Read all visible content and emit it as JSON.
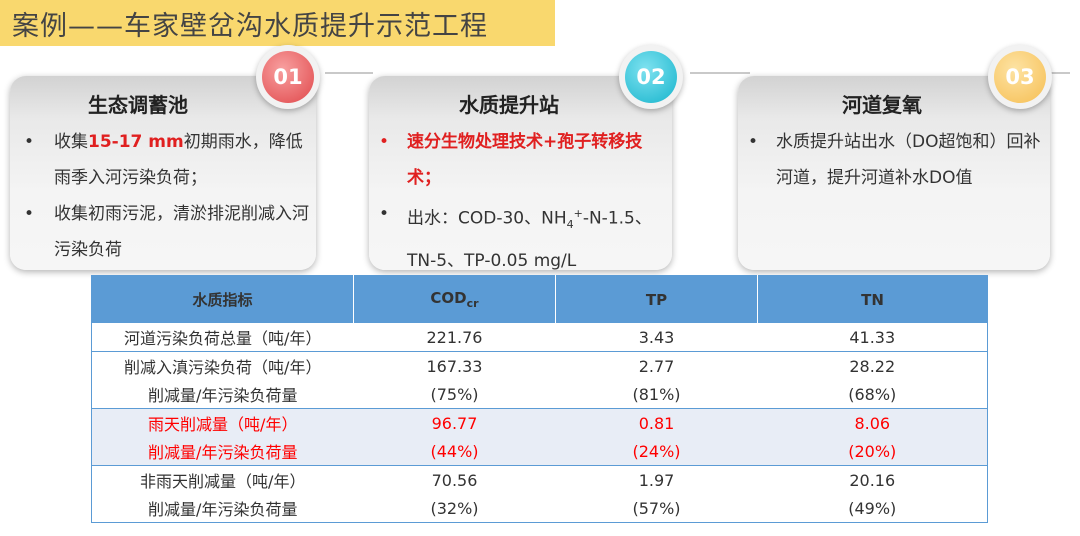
{
  "title": "案例——车家壁岔沟水质提升示范工程",
  "cards": [
    {
      "badge": "01",
      "title": "生态调蓄池",
      "bullets": [
        {
          "pre": "收集",
          "red": "15-17 mm",
          "post": "初期雨水，降低雨季入河污染负荷；"
        },
        {
          "pre": "收集初雨污泥，清淤排泥削减入河污染负荷"
        }
      ]
    },
    {
      "badge": "02",
      "title": "水质提升站",
      "bullets": [
        {
          "red": "速分生物处理技术+孢子转移技术；"
        },
        {
          "pre": "出水：COD-30、NH",
          "sub": "4",
          "sup": "+",
          "post": "-N-1.5、TN-5、TP-0.05 mg/L"
        }
      ]
    },
    {
      "badge": "03",
      "title": "河道复氧",
      "bullets": [
        {
          "pre": "水质提升站出水（DO超饱和）回补河道，提升河道补水DO值"
        }
      ]
    }
  ],
  "table": {
    "headers": {
      "indicator": "水质指标",
      "cod": "COD",
      "cod_sub": "cr",
      "tp": "TP",
      "tn": "TN"
    },
    "rows": [
      [
        "河道污染负荷总量（吨/年）",
        "221.76",
        "3.43",
        "41.33"
      ],
      [
        "削减入滇污染负荷（吨/年）",
        "167.33",
        "2.77",
        "28.22"
      ],
      [
        "削减量/年污染负荷量",
        "(75%)",
        "(81%)",
        "(68%)"
      ],
      [
        "雨天削减量（吨/年）",
        "96.77",
        "0.81",
        "8.06"
      ],
      [
        "削减量/年污染负荷量",
        "(44%)",
        "(24%)",
        "(20%)"
      ],
      [
        "非雨天削减量（吨/年）",
        "70.56",
        "1.97",
        "20.16"
      ],
      [
        "削减量/年污染负荷量",
        "(32%)",
        "(57%)",
        "(49%)"
      ]
    ]
  },
  "colors": {
    "accent_red": "#e02020",
    "header_blue": "#5b9bd5",
    "title_yellow": "#f9d86e"
  }
}
